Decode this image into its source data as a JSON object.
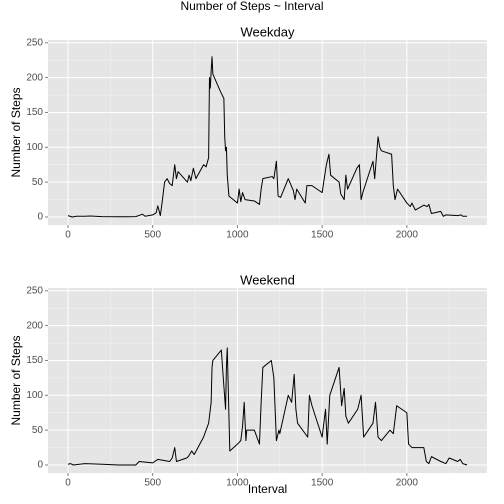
{
  "title": "Number of Steps ~ Interval",
  "chart_data": [
    {
      "type": "line",
      "title": "Weekday",
      "ylabel": "Number of Steps",
      "color": "#000000",
      "grid": true,
      "x": [
        0,
        25,
        50,
        100,
        130,
        200,
        300,
        400,
        440,
        455,
        500,
        520,
        530,
        545,
        555,
        570,
        585,
        600,
        615,
        630,
        640,
        650,
        705,
        715,
        725,
        740,
        755,
        800,
        815,
        830,
        835,
        840,
        845,
        850,
        855,
        900,
        910,
        920,
        925,
        930,
        935,
        940,
        950,
        1000,
        1010,
        1020,
        1030,
        1045,
        1100,
        1130,
        1140,
        1150,
        1205,
        1215,
        1230,
        1240,
        1255,
        1300,
        1330,
        1340,
        1350,
        1400,
        1410,
        1440,
        1500,
        1525,
        1540,
        1550,
        1600,
        1610,
        1630,
        1640,
        1650,
        1705,
        1720,
        1730,
        1740,
        1800,
        1810,
        1830,
        1840,
        1850,
        1910,
        1920,
        1930,
        1945,
        2000,
        2020,
        2030,
        2050,
        2100,
        2120,
        2130,
        2145,
        2200,
        2215,
        2230,
        2300,
        2320,
        2330,
        2355
      ],
      "values": [
        2,
        0,
        1,
        1,
        1.5,
        0.5,
        0.3,
        0.5,
        4,
        1,
        3,
        6,
        16,
        2,
        20,
        50,
        55,
        48,
        45,
        75,
        55,
        65,
        50,
        60,
        52,
        70,
        55,
        75,
        72,
        85,
        200,
        185,
        210,
        230,
        205,
        180,
        175,
        170,
        115,
        95,
        100,
        60,
        30,
        20,
        40,
        22,
        35,
        25,
        23,
        18,
        40,
        55,
        58,
        55,
        80,
        30,
        28,
        55,
        38,
        25,
        40,
        20,
        45,
        45,
        35,
        75,
        90,
        60,
        50,
        33,
        25,
        60,
        40,
        70,
        75,
        25,
        35,
        80,
        55,
        115,
        100,
        95,
        90,
        45,
        25,
        40,
        20,
        15,
        20,
        10,
        17,
        15,
        18,
        5,
        8,
        1,
        3,
        2,
        3,
        1,
        1
      ],
      "xlim": [
        -118,
        2473
      ],
      "ylim": [
        -11.5,
        254
      ],
      "xticks": [
        0,
        500,
        1000,
        1500,
        2000
      ],
      "yticks": [
        0,
        50,
        100,
        150,
        200,
        250
      ],
      "x_minor_ticks": [
        250,
        750,
        1250,
        1750,
        2250
      ],
      "y_minor_ticks": [
        25,
        75,
        125,
        175,
        225
      ]
    },
    {
      "type": "line",
      "title": "Weekend",
      "ylabel": "Number of Steps",
      "xlabel": "Interval",
      "color": "#000000",
      "grid": true,
      "x": [
        0,
        15,
        30,
        100,
        200,
        300,
        400,
        420,
        500,
        530,
        600,
        615,
        630,
        640,
        700,
        710,
        730,
        745,
        800,
        830,
        845,
        850,
        855,
        905,
        915,
        930,
        935,
        940,
        955,
        1000,
        1020,
        1030,
        1040,
        1050,
        1055,
        1100,
        1130,
        1140,
        1150,
        1200,
        1215,
        1230,
        1245,
        1250,
        1300,
        1320,
        1335,
        1345,
        1355,
        1415,
        1425,
        1440,
        1500,
        1520,
        1530,
        1545,
        1600,
        1615,
        1630,
        1640,
        1655,
        1710,
        1730,
        1745,
        1800,
        1815,
        1830,
        1850,
        1900,
        1920,
        1940,
        2000,
        2010,
        2030,
        2100,
        2115,
        2130,
        2145,
        2200,
        2230,
        2250,
        2300,
        2315,
        2330,
        2355
      ],
      "values": [
        1,
        2,
        0,
        2,
        1,
        0,
        0,
        5,
        3,
        8,
        5,
        10,
        25,
        5,
        10,
        12,
        20,
        15,
        40,
        60,
        90,
        140,
        150,
        165,
        130,
        80,
        140,
        168,
        20,
        30,
        35,
        55,
        90,
        35,
        50,
        50,
        30,
        90,
        140,
        150,
        125,
        35,
        50,
        45,
        100,
        90,
        130,
        80,
        60,
        40,
        100,
        85,
        40,
        80,
        30,
        100,
        140,
        85,
        110,
        70,
        60,
        80,
        100,
        40,
        60,
        90,
        40,
        35,
        50,
        45,
        85,
        75,
        30,
        25,
        25,
        5,
        2,
        12,
        5,
        2,
        10,
        5,
        8,
        2,
        0
      ],
      "xlim": [
        -118,
        2473
      ],
      "ylim": [
        -11.5,
        254
      ],
      "xticks": [
        0,
        500,
        1000,
        1500,
        2000
      ],
      "yticks": [
        0,
        50,
        100,
        150,
        200,
        250
      ],
      "x_minor_ticks": [
        250,
        750,
        1250,
        1750,
        2250
      ],
      "y_minor_ticks": [
        25,
        75,
        125,
        175,
        225
      ]
    }
  ]
}
